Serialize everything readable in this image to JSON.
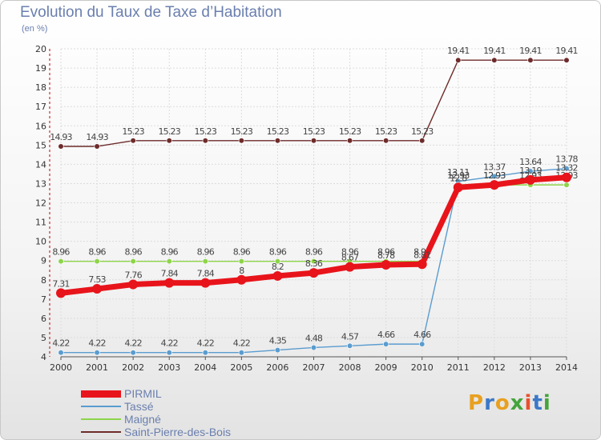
{
  "title": "Evolution du Taux de Taxe d’Habitation",
  "subtitle": "(en %)",
  "brand": {
    "text": "Proxiti",
    "colors": [
      "#e8a020",
      "#3c78c8",
      "#e8a020",
      "#44a43c",
      "#e8502c",
      "#3c78c8",
      "#44a43c"
    ]
  },
  "chart_data": {
    "type": "line",
    "x": [
      2000,
      2001,
      2002,
      2003,
      2004,
      2005,
      2006,
      2007,
      2008,
      2009,
      2010,
      2011,
      2012,
      2013,
      2014
    ],
    "ylim": [
      4,
      20
    ],
    "yticks": [
      4,
      5,
      6,
      7,
      8,
      9,
      10,
      11,
      12,
      13,
      14,
      15,
      16,
      17,
      18,
      19,
      20
    ],
    "grid": true,
    "legend_position": "bottom-left",
    "series": [
      {
        "name": "Saint-Pierre-des-Bois",
        "color": "#6e2b2b",
        "values": [
          14.93,
          14.93,
          15.23,
          15.23,
          15.23,
          15.23,
          15.23,
          15.23,
          15.23,
          15.23,
          15.23,
          19.41,
          19.41,
          19.41,
          19.41
        ],
        "labels": [
          "14.93",
          "14.93",
          "15.23",
          "15.23",
          "15.23",
          "15.23",
          "15.23",
          "15.23",
          "15.23",
          "15.23",
          "15.23",
          "19.41",
          "19.41",
          "19.41",
          "19.41"
        ]
      },
      {
        "name": "Tassé",
        "color": "#5a9ccf",
        "values": [
          4.22,
          4.22,
          4.22,
          4.22,
          4.22,
          4.22,
          4.35,
          4.48,
          4.57,
          4.66,
          4.66,
          13.11,
          13.37,
          13.64,
          13.78
        ],
        "labels": [
          "4.22",
          "4.22",
          "4.22",
          "4.22",
          "4.22",
          "4.22",
          "4.35",
          "4.48",
          "4.57",
          "4.66",
          "4.66",
          "13.11",
          "13.37",
          "13.64",
          "13.78"
        ]
      },
      {
        "name": "Maigné",
        "color": "#8ed44a",
        "values": [
          8.96,
          8.96,
          8.96,
          8.96,
          8.96,
          8.96,
          8.96,
          8.96,
          8.96,
          8.96,
          8.96,
          12.93,
          12.93,
          12.93,
          12.93
        ],
        "labels": [
          "8.96",
          "8.96",
          "8.96",
          "8.96",
          "8.96",
          "8.96",
          "8.96",
          "8.96",
          "8.96",
          "8.96",
          "8.96",
          "12.93",
          "12.93",
          "12.93",
          "12.93"
        ]
      },
      {
        "name": "PIRMIL",
        "color": "#e8141b",
        "values": [
          7.31,
          7.53,
          7.76,
          7.84,
          7.84,
          8,
          8.2,
          8.36,
          8.67,
          8.78,
          8.81,
          12.8,
          12.93,
          13.19,
          13.32
        ],
        "labels": [
          "7.31",
          "7.53",
          "7.76",
          "7.84",
          "7.84",
          "8",
          "8.2",
          "8.36",
          "8.67",
          "8.78",
          "8.81",
          "12.8",
          "12.93",
          "13.19",
          "13.32"
        ]
      }
    ],
    "legend": [
      {
        "name": "PIRMIL",
        "color": "#e8141b"
      },
      {
        "name": "Tassé",
        "color": "#5a9ccf"
      },
      {
        "name": "Maigné",
        "color": "#8ed44a"
      },
      {
        "name": "Saint-Pierre-des-Bois",
        "color": "#6e2b2b"
      }
    ]
  }
}
